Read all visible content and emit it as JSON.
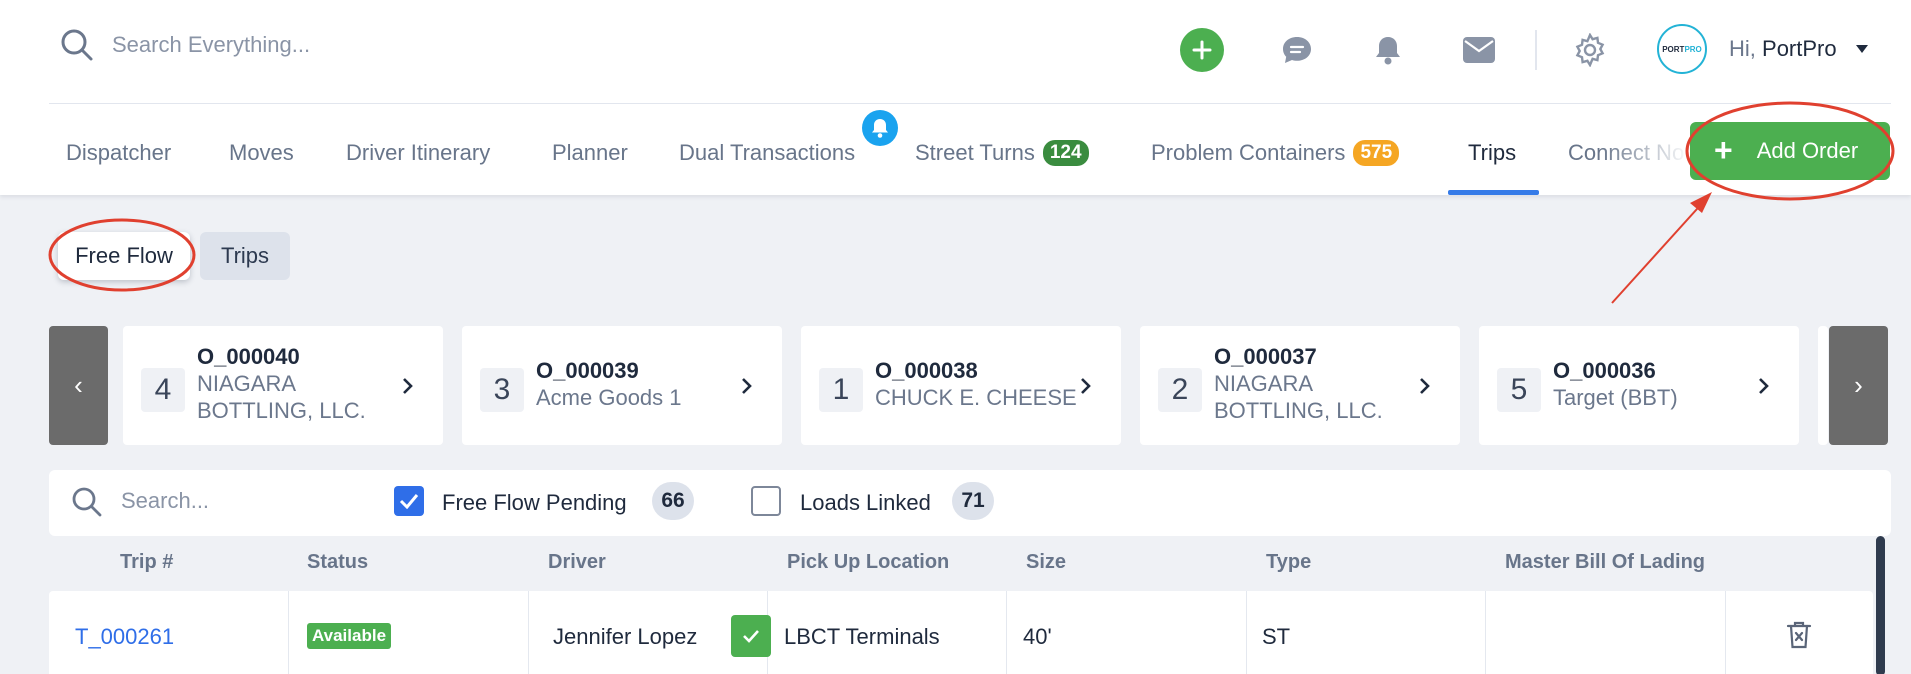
{
  "header": {
    "search_placeholder": "Search Everything...",
    "greeting_prefix": "Hi,",
    "user_name": "PortPro",
    "avatar_text_a": "PORT",
    "avatar_text_b": "PRO"
  },
  "icons": {
    "search": "search-icon",
    "add": "plus-icon",
    "chat": "chat-icon",
    "notifications": "bell-icon",
    "mail": "mail-icon",
    "settings": "gear-icon",
    "user_menu": "caret-down-icon",
    "prev": "chevron-left-icon",
    "next": "chevron-right-icon",
    "delete": "trash-icon"
  },
  "nav": {
    "tabs": [
      {
        "label": "Dispatcher"
      },
      {
        "label": "Moves"
      },
      {
        "label": "Driver Itinerary"
      },
      {
        "label": "Planner"
      },
      {
        "label": "Dual Transactions"
      },
      {
        "label": "Street Turns",
        "badge": "124"
      },
      {
        "label": "Problem Containers",
        "badge": "575"
      },
      {
        "label": "Trips",
        "active": true
      },
      {
        "label": "Connect No"
      }
    ],
    "add_order_label": "Add Order"
  },
  "toggle": {
    "options": [
      "Free Flow",
      "Trips"
    ],
    "selected": "Free Flow"
  },
  "carousel": {
    "prev_glyph": "‹",
    "next_glyph": "›",
    "cards": [
      {
        "count": "4",
        "order_id": "O_000040",
        "customer_line1": "NIAGARA",
        "customer_line2": "BOTTLING, LLC."
      },
      {
        "count": "3",
        "order_id": "O_000039",
        "customer_line1": "Acme Goods 1",
        "customer_line2": ""
      },
      {
        "count": "1",
        "order_id": "O_000038",
        "customer_line1": "CHUCK E. CHEESE",
        "customer_line2": ""
      },
      {
        "count": "2",
        "order_id": "O_000037",
        "customer_line1": "NIAGARA",
        "customer_line2": "BOTTLING, LLC."
      },
      {
        "count": "5",
        "order_id": "O_000036",
        "customer_line1": "Target (BBT)",
        "customer_line2": ""
      }
    ]
  },
  "filters": {
    "search_placeholder": "Search...",
    "free_flow_pending": {
      "label": "Free Flow Pending",
      "count": "66",
      "checked": true
    },
    "loads_linked": {
      "label": "Loads Linked",
      "count": "71",
      "checked": false
    }
  },
  "table": {
    "columns": [
      "Trip #",
      "Status",
      "Driver",
      "Pick Up Location",
      "Size",
      "Type",
      "Master Bill Of Lading"
    ],
    "rows": [
      {
        "trip": "T_000261",
        "status": "Available",
        "driver": "Jennifer Lopez",
        "pickup": "LBCT Terminals",
        "size": "40'",
        "type": "ST",
        "mbol": ""
      }
    ]
  },
  "colors": {
    "accent_green": "#4caf50",
    "link_blue": "#2f6ee8",
    "annotation_red": "#e0402f",
    "badge_orange": "#f5a623",
    "badge_green": "#3a8c3f"
  }
}
